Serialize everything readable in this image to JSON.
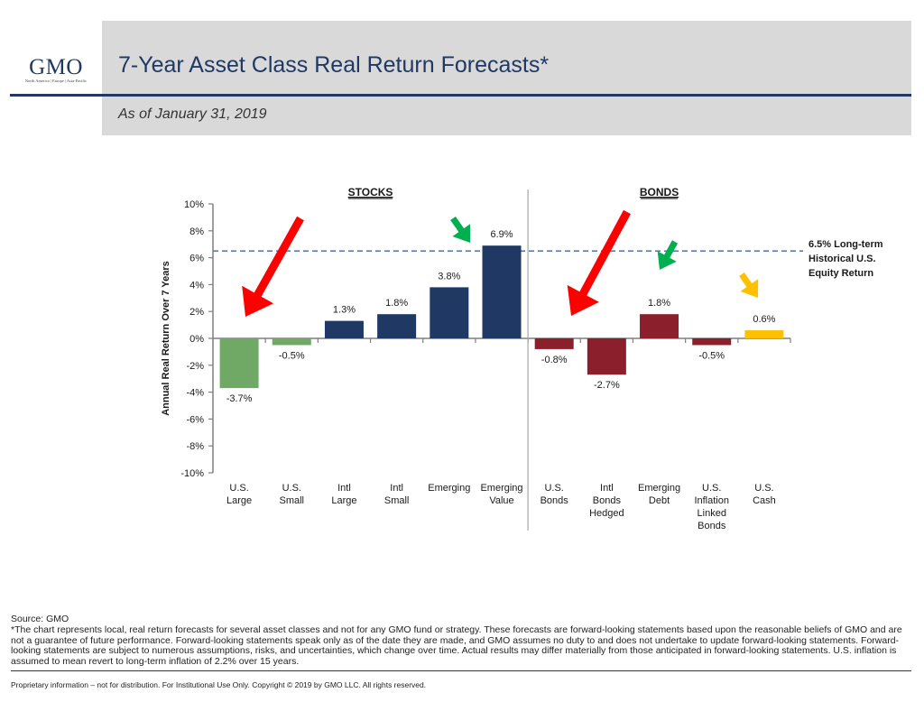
{
  "header": {
    "logo": "GMO",
    "logo_tagline": "North America  |  Europe  |  Asia-Pacific",
    "title": "7-Year Asset Class Real Return Forecasts*",
    "subtitle": "As of January 31, 2019"
  },
  "chart_data": {
    "type": "bar",
    "title": "7-Year Asset Class Real Return Forecasts*",
    "xlabel": "",
    "ylabel": "Annual Real Return Over 7 Years",
    "ylim": [
      -10,
      10
    ],
    "yticks": [
      10,
      8,
      6,
      4,
      2,
      0,
      -2,
      -4,
      -6,
      -8,
      -10
    ],
    "ytick_labels": [
      "10%",
      "8%",
      "6%",
      "4%",
      "2%",
      "0%",
      "-2%",
      "-4%",
      "-6%",
      "-8%",
      "-10%"
    ],
    "grid": false,
    "groups": [
      {
        "label": "STOCKS",
        "start": 0,
        "end": 5
      },
      {
        "label": "BONDS",
        "start": 6,
        "end": 10
      }
    ],
    "categories": [
      [
        "U.S.",
        "Large"
      ],
      [
        "U.S.",
        "Small"
      ],
      [
        "Intl",
        "Large"
      ],
      [
        "Intl",
        "Small"
      ],
      [
        "Emerging"
      ],
      [
        "Emerging",
        "Value"
      ],
      [
        "U.S.",
        "Bonds"
      ],
      [
        "Intl",
        "Bonds",
        "Hedged"
      ],
      [
        "Emerging",
        "Debt"
      ],
      [
        "U.S.",
        "Inflation",
        "Linked",
        "Bonds"
      ],
      [
        "U.S.",
        "Cash"
      ]
    ],
    "values": [
      -3.7,
      -0.5,
      1.3,
      1.8,
      3.8,
      6.9,
      -0.8,
      -2.7,
      1.8,
      -0.5,
      0.6
    ],
    "value_labels": [
      "-3.7%",
      "-0.5%",
      "1.3%",
      "1.8%",
      "3.8%",
      "6.9%",
      "-0.8%",
      "-2.7%",
      "1.8%",
      "-0.5%",
      "0.6%"
    ],
    "bar_colors": [
      "#70a866",
      "#70a866",
      "#1f3864",
      "#1f3864",
      "#1f3864",
      "#1f3864",
      "#8b1f2c",
      "#8b1f2c",
      "#8b1f2c",
      "#8b1f2c",
      "#ffc000"
    ],
    "reference_line": {
      "value": 6.5,
      "label": [
        "6.5% Long-term",
        "Historical U.S.",
        "Equity Return"
      ],
      "color": "#5b7fa6",
      "style": "dashed"
    },
    "annotations": [
      {
        "type": "arrow",
        "color": "#ff0000",
        "points_to_category": 0,
        "direction": "down-left",
        "size": "large"
      },
      {
        "type": "arrow",
        "color": "#00b050",
        "points_to_category": 5,
        "direction": "down-right",
        "size": "small"
      },
      {
        "type": "arrow",
        "color": "#ff0000",
        "points_to_category": 6,
        "direction": "down-left",
        "size": "large"
      },
      {
        "type": "arrow",
        "color": "#00b050",
        "points_to_category": 8,
        "direction": "down-left",
        "size": "small"
      },
      {
        "type": "arrow",
        "color": "#ffc000",
        "points_to_category": 10,
        "direction": "down-right",
        "size": "small"
      }
    ]
  },
  "footer": {
    "source": "Source: GMO",
    "note": "*The chart represents local, real return forecasts for several asset classes and not for any GMO fund or strategy.  These forecasts are forward-looking statements based upon the reasonable beliefs of GMO and are not a guarantee of future performance.  Forward-looking statements speak only as of the date they are made, and GMO assumes no duty to and does not undertake to update forward-looking statements.  Forward-looking statements are subject to numerous assumptions, risks, and uncertainties, which change over time.  Actual results may differ materially from those anticipated in forward-looking statements. U.S. inflation is assumed to mean revert to long-term inflation of 2.2% over 15 years.",
    "legal": "Proprietary information – not for distribution. For Institutional Use Only. Copyright © 2019 by GMO LLC.  All rights reserved."
  }
}
